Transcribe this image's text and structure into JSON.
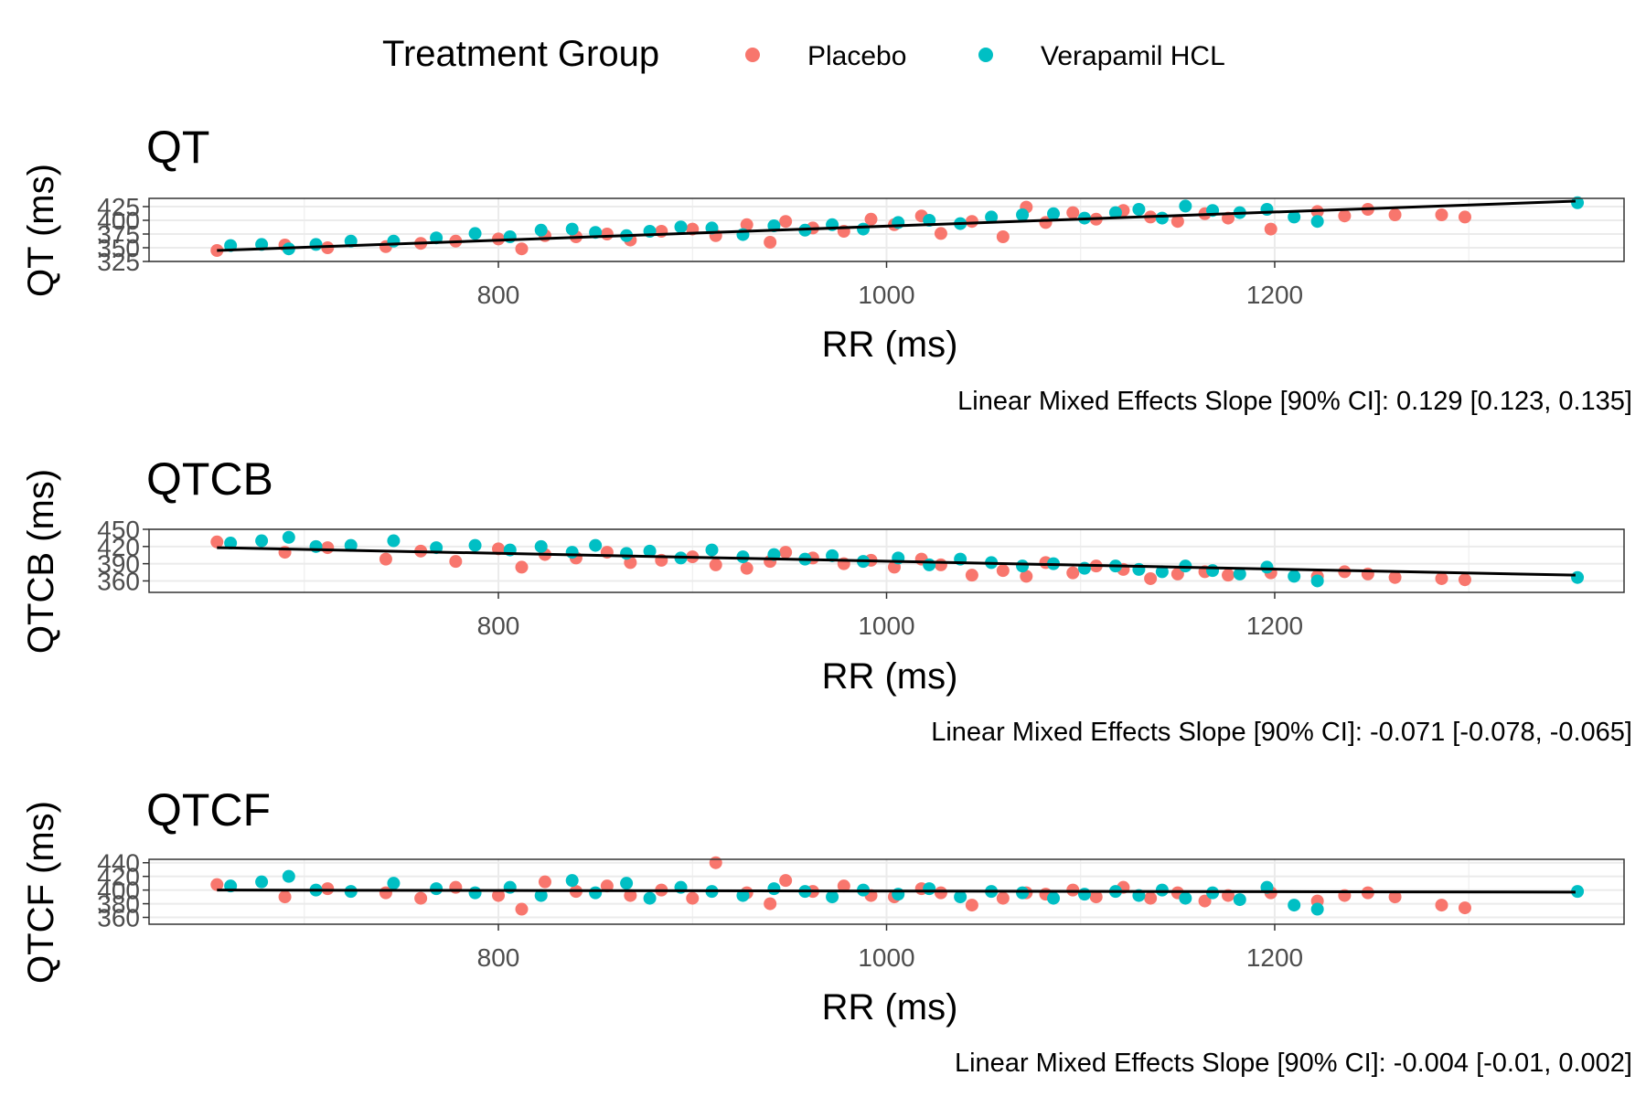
{
  "legend": {
    "title": "Treatment Group",
    "items": [
      {
        "label": "Placebo",
        "color": "#F8766D"
      },
      {
        "label": "Verapamil HCL",
        "color": "#00BFC4"
      }
    ]
  },
  "chart_data": [
    {
      "type": "scatter",
      "title": "QT",
      "xlabel": "RR (ms)",
      "ylabel": "QT (ms)",
      "xlim": [
        620,
        1380
      ],
      "ylim": [
        325,
        440
      ],
      "x_ticks": [
        800,
        1000,
        1200
      ],
      "y_ticks": [
        325,
        350,
        375,
        400,
        425
      ],
      "grid": true,
      "caption": "Linear Mixed Effects Slope [90% CI]: 0.129 [0.123, 0.135]",
      "fit_line": {
        "x": [
          655,
          1355
        ],
        "y": [
          345,
          435
        ]
      },
      "series": [
        {
          "name": "Placebo",
          "color": "#F8766D",
          "points": [
            [
              655,
              345
            ],
            [
              690,
              355
            ],
            [
              712,
              350
            ],
            [
              742,
              352
            ],
            [
              760,
              358
            ],
            [
              778,
              362
            ],
            [
              800,
              366
            ],
            [
              812,
              348
            ],
            [
              824,
              372
            ],
            [
              840,
              370
            ],
            [
              856,
              375
            ],
            [
              868,
              364
            ],
            [
              884,
              380
            ],
            [
              900,
              384
            ],
            [
              912,
              372
            ],
            [
              928,
              392
            ],
            [
              940,
              360
            ],
            [
              948,
              398
            ],
            [
              962,
              386
            ],
            [
              978,
              380
            ],
            [
              992,
              402
            ],
            [
              1004,
              392
            ],
            [
              1018,
              408
            ],
            [
              1028,
              376
            ],
            [
              1044,
              398
            ],
            [
              1060,
              370
            ],
            [
              1072,
              424
            ],
            [
              1082,
              396
            ],
            [
              1096,
              414
            ],
            [
              1108,
              402
            ],
            [
              1122,
              418
            ],
            [
              1136,
              406
            ],
            [
              1150,
              398
            ],
            [
              1164,
              412
            ],
            [
              1176,
              404
            ],
            [
              1198,
              384
            ],
            [
              1222,
              416
            ],
            [
              1236,
              408
            ],
            [
              1248,
              420
            ],
            [
              1262,
              410
            ],
            [
              1286,
              410
            ],
            [
              1298,
              406
            ]
          ]
        },
        {
          "name": "Verapamil HCL",
          "color": "#00BFC4",
          "points": [
            [
              662,
              354
            ],
            [
              678,
              356
            ],
            [
              692,
              348
            ],
            [
              706,
              356
            ],
            [
              724,
              362
            ],
            [
              746,
              362
            ],
            [
              768,
              368
            ],
            [
              788,
              376
            ],
            [
              806,
              370
            ],
            [
              822,
              382
            ],
            [
              838,
              384
            ],
            [
              850,
              378
            ],
            [
              866,
              372
            ],
            [
              878,
              380
            ],
            [
              894,
              388
            ],
            [
              910,
              386
            ],
            [
              926,
              374
            ],
            [
              942,
              390
            ],
            [
              958,
              382
            ],
            [
              972,
              392
            ],
            [
              988,
              384
            ],
            [
              1006,
              396
            ],
            [
              1022,
              400
            ],
            [
              1038,
              394
            ],
            [
              1054,
              406
            ],
            [
              1070,
              410
            ],
            [
              1086,
              412
            ],
            [
              1102,
              404
            ],
            [
              1118,
              414
            ],
            [
              1130,
              420
            ],
            [
              1142,
              404
            ],
            [
              1154,
              426
            ],
            [
              1168,
              418
            ],
            [
              1182,
              414
            ],
            [
              1196,
              420
            ],
            [
              1210,
              406
            ],
            [
              1222,
              398
            ],
            [
              1356,
              432
            ]
          ]
        }
      ]
    },
    {
      "type": "scatter",
      "title": "QTCB",
      "xlabel": "RR (ms)",
      "ylabel": "QTCB (ms)",
      "xlim": [
        620,
        1380
      ],
      "ylim": [
        340,
        450
      ],
      "x_ticks": [
        800,
        1000,
        1200
      ],
      "y_ticks": [
        360,
        390,
        420,
        450
      ],
      "grid": true,
      "caption": "Linear Mixed Effects Slope [90% CI]: -0.071 [-0.078, -0.065]",
      "fit_line": {
        "x": [
          655,
          1355
        ],
        "y": [
          418,
          370
        ]
      },
      "series": [
        {
          "name": "Placebo",
          "color": "#F8766D",
          "points": [
            [
              655,
              428
            ],
            [
              690,
              410
            ],
            [
              712,
              418
            ],
            [
              742,
              398
            ],
            [
              760,
              412
            ],
            [
              778,
              394
            ],
            [
              800,
              416
            ],
            [
              812,
              384
            ],
            [
              824,
              406
            ],
            [
              840,
              400
            ],
            [
              856,
              410
            ],
            [
              868,
              392
            ],
            [
              884,
              396
            ],
            [
              900,
              402
            ],
            [
              912,
              388
            ],
            [
              928,
              382
            ],
            [
              940,
              394
            ],
            [
              948,
              410
            ],
            [
              962,
              400
            ],
            [
              978,
              390
            ],
            [
              992,
              396
            ],
            [
              1004,
              384
            ],
            [
              1018,
              398
            ],
            [
              1028,
              388
            ],
            [
              1044,
              370
            ],
            [
              1060,
              378
            ],
            [
              1072,
              368
            ],
            [
              1082,
              392
            ],
            [
              1096,
              374
            ],
            [
              1108,
              386
            ],
            [
              1122,
              380
            ],
            [
              1136,
              364
            ],
            [
              1150,
              372
            ],
            [
              1164,
              376
            ],
            [
              1176,
              370
            ],
            [
              1198,
              374
            ],
            [
              1222,
              368
            ],
            [
              1236,
              376
            ],
            [
              1248,
              372
            ],
            [
              1262,
              366
            ],
            [
              1286,
              364
            ],
            [
              1298,
              362
            ]
          ]
        },
        {
          "name": "Verapamil HCL",
          "color": "#00BFC4",
          "points": [
            [
              662,
              426
            ],
            [
              678,
              430
            ],
            [
              692,
              436
            ],
            [
              706,
              420
            ],
            [
              724,
              422
            ],
            [
              746,
              430
            ],
            [
              768,
              418
            ],
            [
              788,
              422
            ],
            [
              806,
              414
            ],
            [
              822,
              420
            ],
            [
              838,
              410
            ],
            [
              850,
              422
            ],
            [
              866,
              408
            ],
            [
              878,
              412
            ],
            [
              894,
              400
            ],
            [
              910,
              414
            ],
            [
              926,
              402
            ],
            [
              942,
              406
            ],
            [
              958,
              398
            ],
            [
              972,
              404
            ],
            [
              988,
              394
            ],
            [
              1006,
              400
            ],
            [
              1022,
              388
            ],
            [
              1038,
              398
            ],
            [
              1054,
              392
            ],
            [
              1070,
              386
            ],
            [
              1086,
              390
            ],
            [
              1102,
              382
            ],
            [
              1118,
              386
            ],
            [
              1130,
              380
            ],
            [
              1142,
              376
            ],
            [
              1154,
              386
            ],
            [
              1168,
              378
            ],
            [
              1182,
              372
            ],
            [
              1196,
              384
            ],
            [
              1210,
              368
            ],
            [
              1222,
              360
            ],
            [
              1356,
              366
            ]
          ]
        }
      ]
    },
    {
      "type": "scatter",
      "title": "QTCF",
      "xlabel": "RR (ms)",
      "ylabel": "QTCF (ms)",
      "xlim": [
        620,
        1380
      ],
      "ylim": [
        350,
        445
      ],
      "x_ticks": [
        800,
        1000,
        1200
      ],
      "y_ticks": [
        360,
        380,
        400,
        420,
        440
      ],
      "grid": true,
      "caption": "Linear Mixed Effects Slope [90% CI]: -0.004 [-0.01, 0.002]",
      "fit_line": {
        "x": [
          655,
          1355
        ],
        "y": [
          400,
          397
        ]
      },
      "series": [
        {
          "name": "Placebo",
          "color": "#F8766D",
          "points": [
            [
              655,
              408
            ],
            [
              690,
              390
            ],
            [
              712,
              402
            ],
            [
              742,
              396
            ],
            [
              760,
              388
            ],
            [
              778,
              404
            ],
            [
              800,
              392
            ],
            [
              812,
              372
            ],
            [
              824,
              412
            ],
            [
              840,
              398
            ],
            [
              856,
              406
            ],
            [
              868,
              392
            ],
            [
              884,
              400
            ],
            [
              900,
              388
            ],
            [
              912,
              440
            ],
            [
              928,
              396
            ],
            [
              940,
              380
            ],
            [
              948,
              414
            ],
            [
              962,
              398
            ],
            [
              978,
              406
            ],
            [
              992,
              392
            ],
            [
              1004,
              390
            ],
            [
              1018,
              402
            ],
            [
              1028,
              396
            ],
            [
              1044,
              378
            ],
            [
              1060,
              388
            ],
            [
              1072,
              396
            ],
            [
              1082,
              394
            ],
            [
              1096,
              400
            ],
            [
              1108,
              390
            ],
            [
              1122,
              404
            ],
            [
              1136,
              388
            ],
            [
              1150,
              396
            ],
            [
              1164,
              384
            ],
            [
              1176,
              392
            ],
            [
              1198,
              396
            ],
            [
              1222,
              384
            ],
            [
              1236,
              392
            ],
            [
              1248,
              396
            ],
            [
              1262,
              390
            ],
            [
              1286,
              378
            ],
            [
              1298,
              374
            ]
          ]
        },
        {
          "name": "Verapamil HCL",
          "color": "#00BFC4",
          "points": [
            [
              662,
              406
            ],
            [
              678,
              412
            ],
            [
              692,
              420
            ],
            [
              706,
              400
            ],
            [
              724,
              398
            ],
            [
              746,
              410
            ],
            [
              768,
              402
            ],
            [
              788,
              396
            ],
            [
              806,
              404
            ],
            [
              822,
              392
            ],
            [
              838,
              414
            ],
            [
              850,
              396
            ],
            [
              866,
              410
            ],
            [
              878,
              388
            ],
            [
              894,
              404
            ],
            [
              910,
              398
            ],
            [
              926,
              392
            ],
            [
              942,
              402
            ],
            [
              958,
              398
            ],
            [
              972,
              390
            ],
            [
              988,
              400
            ],
            [
              1006,
              394
            ],
            [
              1022,
              402
            ],
            [
              1038,
              390
            ],
            [
              1054,
              398
            ],
            [
              1070,
              396
            ],
            [
              1086,
              388
            ],
            [
              1102,
              394
            ],
            [
              1118,
              398
            ],
            [
              1130,
              392
            ],
            [
              1142,
              400
            ],
            [
              1154,
              388
            ],
            [
              1168,
              396
            ],
            [
              1182,
              386
            ],
            [
              1196,
              404
            ],
            [
              1210,
              378
            ],
            [
              1222,
              372
            ],
            [
              1356,
              398
            ]
          ]
        }
      ]
    }
  ]
}
